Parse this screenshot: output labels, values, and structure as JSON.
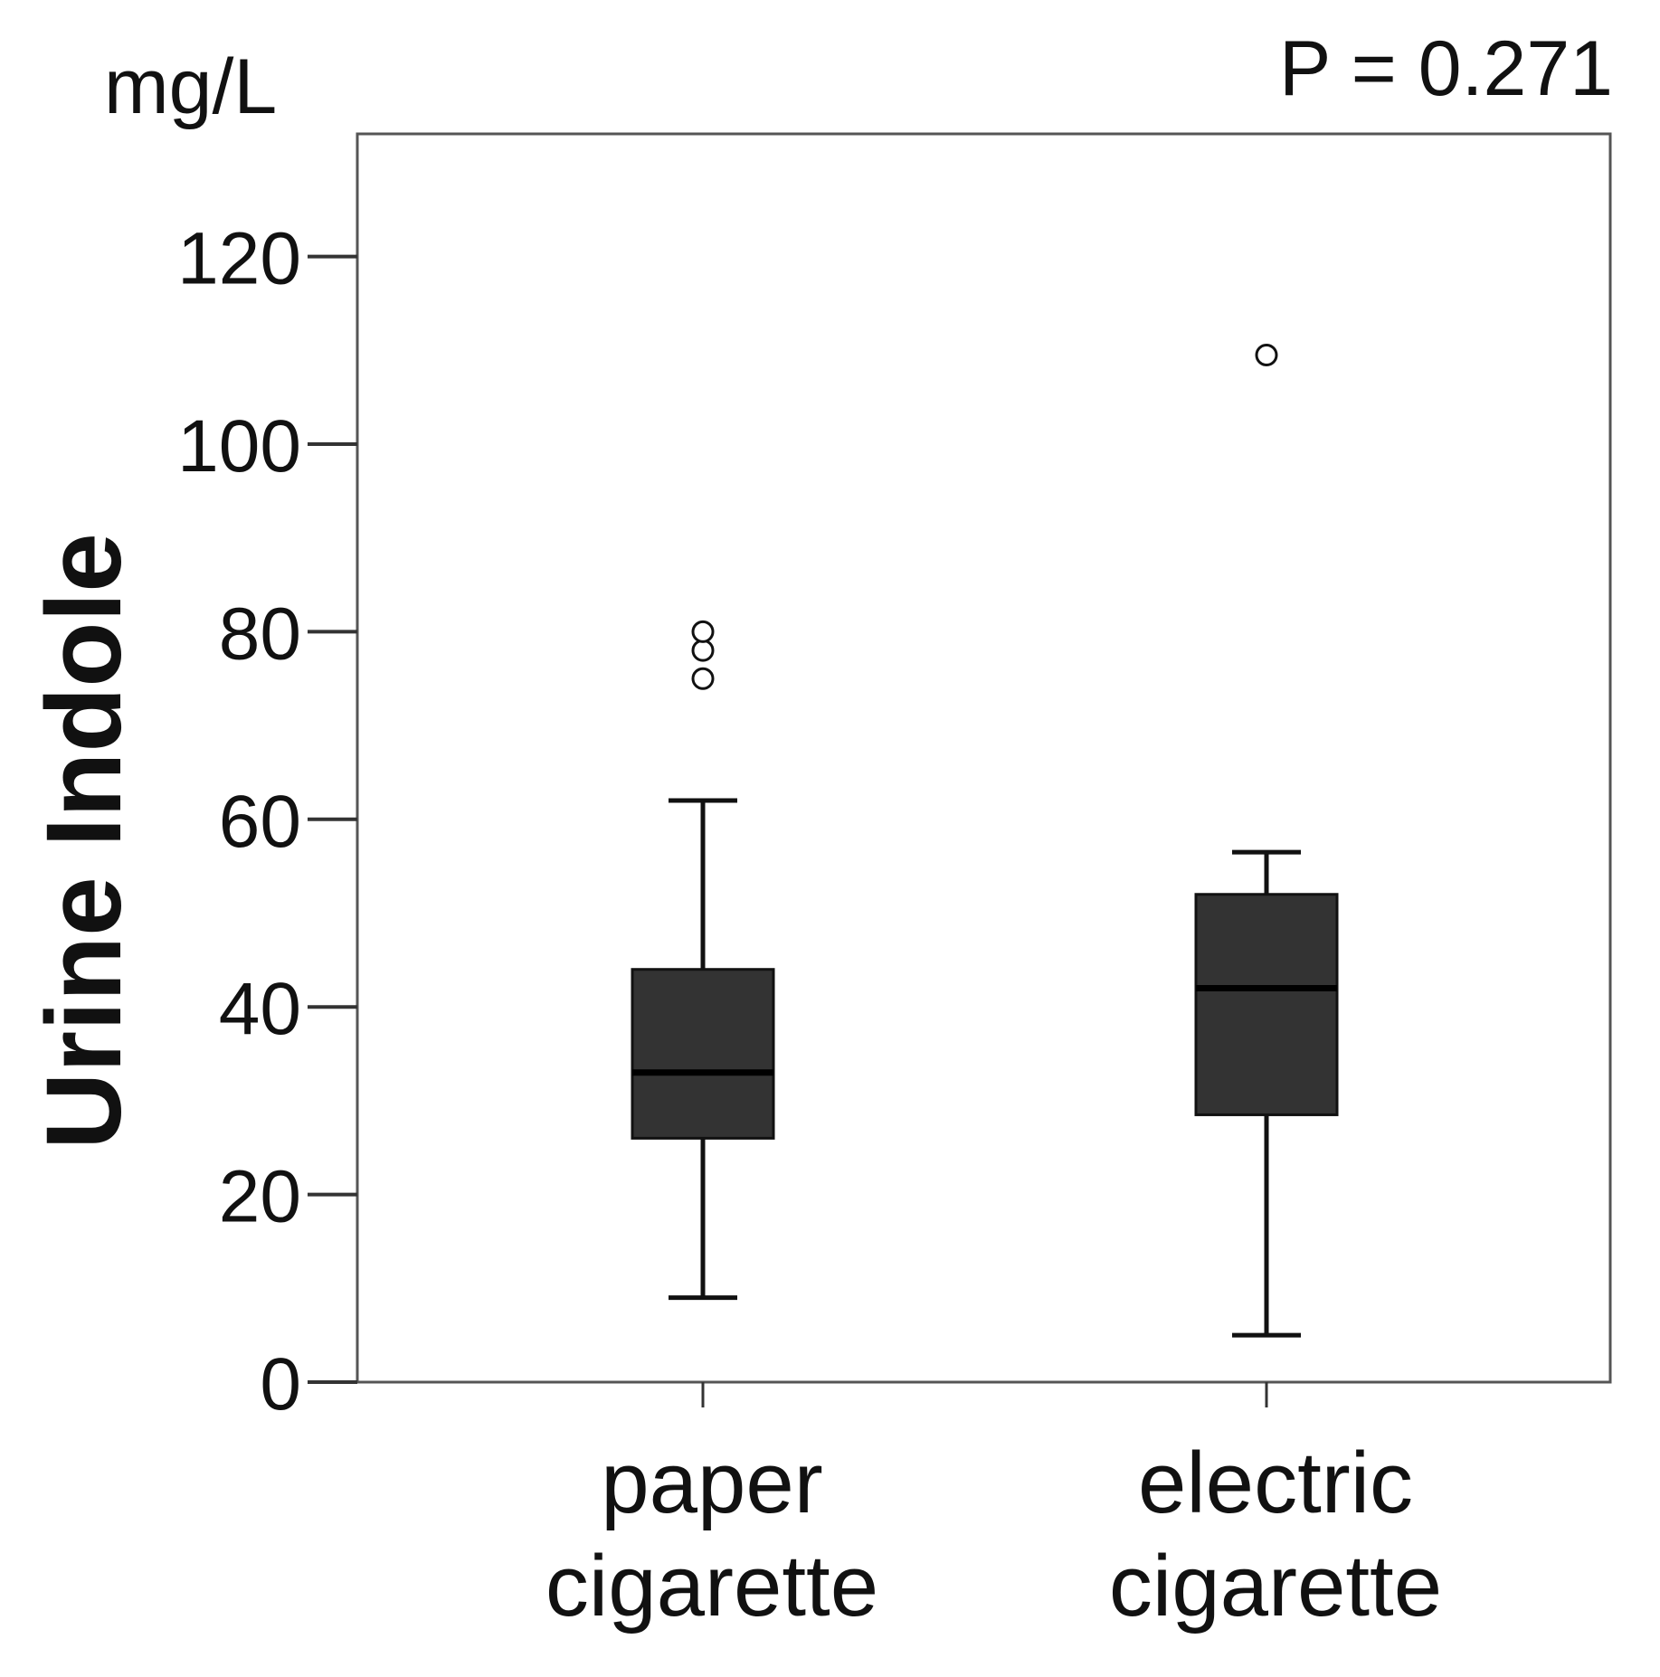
{
  "chart_data": {
    "type": "box",
    "unit_label": "mg/L",
    "p_value_label": "P = 0.271",
    "ylabel": "Urine Indole",
    "ylim": [
      0,
      133
    ],
    "yticks": [
      0,
      20,
      40,
      60,
      80,
      100,
      120
    ],
    "grid": false,
    "categories": [
      "paper\ncigarette",
      "electric\ncigarette"
    ],
    "boxes": [
      {
        "category_lines": [
          "paper",
          "cigarette"
        ],
        "whisker_low": 9,
        "q1": 26,
        "median": 33,
        "q3": 44,
        "whisker_high": 62,
        "outliers": [
          75,
          78,
          80
        ]
      },
      {
        "category_lines": [
          "electric",
          "cigarette"
        ],
        "whisker_low": 5,
        "q1": 28.5,
        "median": 42,
        "q3": 52,
        "whisker_high": 56.5,
        "outliers": [
          109.5
        ]
      }
    ],
    "colors": {
      "box_fill": "#333333",
      "stroke": "#111111",
      "frame": "#555555"
    }
  }
}
